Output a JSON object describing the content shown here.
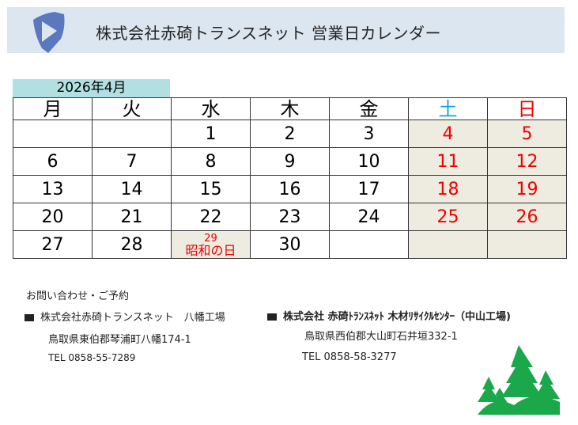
{
  "header": {
    "title": "株式会社赤碕トランスネット  営業日カレンダー",
    "logo_color": "#5b77bd",
    "background": "#dce6f0"
  },
  "calendar": {
    "month_label": "2026年4月",
    "weekdays": [
      "月",
      "火",
      "水",
      "木",
      "金",
      "土",
      "日"
    ],
    "weeks": [
      [
        "",
        "",
        "1",
        "2",
        "3",
        "4",
        "5"
      ],
      [
        "6",
        "7",
        "8",
        "9",
        "10",
        "11",
        "12"
      ],
      [
        "13",
        "14",
        "15",
        "16",
        "17",
        "18",
        "19"
      ],
      [
        "20",
        "21",
        "22",
        "23",
        "24",
        "25",
        "26"
      ],
      [
        "27",
        "28",
        "29",
        "30",
        "",
        "",
        ""
      ]
    ],
    "holiday": {
      "day": "29",
      "name": "昭和の日"
    },
    "colors": {
      "saturday": "#1aa0e6",
      "sunday": "#e00000",
      "holiday_bg": "#eeebe0",
      "month_bg": "#b1dfe2"
    }
  },
  "contact": {
    "heading": "お問い合わせ・ご予約",
    "left": {
      "name": "株式会社赤碕トランスネット　八幡工場",
      "address": "鳥取県東伯郡琴浦町八幡174-1",
      "tel": "TEL  0858-55-7289"
    },
    "right": {
      "name": "株式会社 赤碕ﾄﾗﾝｽﾈｯﾄ 木材ﾘｻｲｸﾙｾﾝﾀｰ（中山工場)",
      "address": "鳥取県西伯郡大山町石井垣332-1",
      "tel": "TEL  0858-58-3277"
    }
  },
  "tree_color": "#1aa84a"
}
